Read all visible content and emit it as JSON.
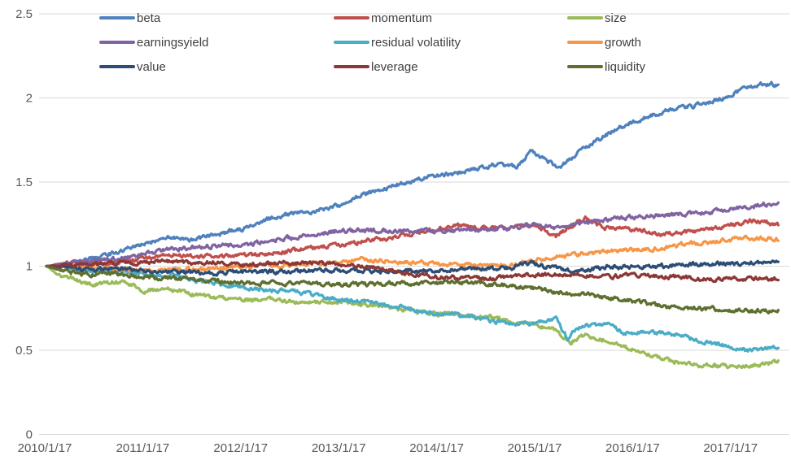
{
  "chart_data": {
    "type": "line",
    "title": "",
    "xlabel": "",
    "ylabel": "",
    "grid": true,
    "legend_position": "top",
    "y_ticks": [
      2.5,
      2,
      1.5,
      1,
      0.5,
      0
    ],
    "y_tick_labels": [
      "2.5",
      "2",
      "1.5",
      "1",
      "0.5",
      "0"
    ],
    "ylim": [
      0,
      2.5
    ],
    "x_tick_labels": [
      "2010/1/17",
      "2011/1/17",
      "2012/1/17",
      "2013/1/17",
      "2014/1/17",
      "2015/1/17",
      "2016/1/17",
      "2017/1/17"
    ],
    "x_unit": "years_since_first_tick",
    "xlim": [
      0,
      7.47
    ],
    "axis_color": "#595959",
    "gridline_color": "#d9d9d9",
    "series": [
      {
        "label": "beta",
        "color": "#4F81BD",
        "points": [
          [
            0,
            1.0
          ],
          [
            0.25,
            1.02
          ],
          [
            0.5,
            1.05
          ],
          [
            0.75,
            1.09
          ],
          [
            1,
            1.13
          ],
          [
            1.25,
            1.17
          ],
          [
            1.5,
            1.16
          ],
          [
            1.75,
            1.19
          ],
          [
            2,
            1.22
          ],
          [
            2.25,
            1.28
          ],
          [
            2.5,
            1.31
          ],
          [
            2.75,
            1.33
          ],
          [
            3,
            1.36
          ],
          [
            3.25,
            1.43
          ],
          [
            3.5,
            1.47
          ],
          [
            3.75,
            1.51
          ],
          [
            4,
            1.54
          ],
          [
            4.25,
            1.56
          ],
          [
            4.55,
            1.6
          ],
          [
            4.8,
            1.59
          ],
          [
            4.96,
            1.69
          ],
          [
            5.1,
            1.63
          ],
          [
            5.23,
            1.58
          ],
          [
            5.4,
            1.66
          ],
          [
            5.6,
            1.74
          ],
          [
            5.8,
            1.81
          ],
          [
            6,
            1.86
          ],
          [
            6.3,
            1.92
          ],
          [
            6.6,
            1.95
          ],
          [
            6.9,
            2.0
          ],
          [
            7.1,
            2.05
          ],
          [
            7.3,
            2.08
          ],
          [
            7.47,
            2.08
          ]
        ]
      },
      {
        "label": "momentum",
        "color": "#C0504D",
        "points": [
          [
            0,
            1.0
          ],
          [
            0.3,
            1.02
          ],
          [
            0.6,
            1.015
          ],
          [
            1,
            1.045
          ],
          [
            1.3,
            1.065
          ],
          [
            1.6,
            1.055
          ],
          [
            1.9,
            1.065
          ],
          [
            2.2,
            1.07
          ],
          [
            2.6,
            1.1
          ],
          [
            3,
            1.125
          ],
          [
            3.4,
            1.16
          ],
          [
            3.7,
            1.19
          ],
          [
            4,
            1.22
          ],
          [
            4.2,
            1.245
          ],
          [
            4.5,
            1.22
          ],
          [
            4.8,
            1.235
          ],
          [
            5,
            1.24
          ],
          [
            5.2,
            1.18
          ],
          [
            5.5,
            1.285
          ],
          [
            5.7,
            1.23
          ],
          [
            6,
            1.22
          ],
          [
            6.3,
            1.19
          ],
          [
            6.6,
            1.21
          ],
          [
            6.9,
            1.23
          ],
          [
            7.2,
            1.27
          ],
          [
            7.47,
            1.25
          ]
        ]
      },
      {
        "label": "size",
        "color": "#9BBB59",
        "points": [
          [
            0,
            1.0
          ],
          [
            0.15,
            0.94
          ],
          [
            0.3,
            0.92
          ],
          [
            0.45,
            0.89
          ],
          [
            0.6,
            0.9
          ],
          [
            0.8,
            0.91
          ],
          [
            1,
            0.85
          ],
          [
            1.2,
            0.87
          ],
          [
            1.5,
            0.83
          ],
          [
            1.8,
            0.81
          ],
          [
            2,
            0.8
          ],
          [
            2.3,
            0.8
          ],
          [
            2.6,
            0.79
          ],
          [
            3,
            0.785
          ],
          [
            3.3,
            0.77
          ],
          [
            3.6,
            0.75
          ],
          [
            3.9,
            0.72
          ],
          [
            4.2,
            0.71
          ],
          [
            4.5,
            0.7
          ],
          [
            4.8,
            0.67
          ],
          [
            5,
            0.65
          ],
          [
            5.2,
            0.62
          ],
          [
            5.35,
            0.55
          ],
          [
            5.5,
            0.59
          ],
          [
            5.7,
            0.56
          ],
          [
            6,
            0.5
          ],
          [
            6.2,
            0.46
          ],
          [
            6.35,
            0.44
          ],
          [
            6.7,
            0.41
          ],
          [
            7,
            0.4
          ],
          [
            7.2,
            0.41
          ],
          [
            7.47,
            0.43
          ]
        ]
      },
      {
        "label": "earningsyield",
        "color": "#8064A2",
        "points": [
          [
            0,
            1.0
          ],
          [
            0.25,
            1.02
          ],
          [
            0.5,
            1.035
          ],
          [
            0.75,
            1.05
          ],
          [
            1,
            1.07
          ],
          [
            1.25,
            1.1
          ],
          [
            1.5,
            1.11
          ],
          [
            1.75,
            1.12
          ],
          [
            2,
            1.12
          ],
          [
            2.25,
            1.15
          ],
          [
            2.5,
            1.17
          ],
          [
            2.75,
            1.19
          ],
          [
            3,
            1.21
          ],
          [
            3.5,
            1.21
          ],
          [
            4,
            1.21
          ],
          [
            4.5,
            1.22
          ],
          [
            4.75,
            1.225
          ],
          [
            5,
            1.255
          ],
          [
            5.2,
            1.23
          ],
          [
            5.5,
            1.26
          ],
          [
            5.75,
            1.28
          ],
          [
            6,
            1.29
          ],
          [
            6.25,
            1.3
          ],
          [
            6.5,
            1.31
          ],
          [
            6.75,
            1.32
          ],
          [
            7,
            1.34
          ],
          [
            7.25,
            1.36
          ],
          [
            7.47,
            1.37
          ]
        ]
      },
      {
        "label": "residual volatility",
        "color": "#4BACC6",
        "points": [
          [
            0,
            1.0
          ],
          [
            0.3,
            0.98
          ],
          [
            0.6,
            0.97
          ],
          [
            0.9,
            0.965
          ],
          [
            1.1,
            0.95
          ],
          [
            1.3,
            0.945
          ],
          [
            1.6,
            0.91
          ],
          [
            1.9,
            0.88
          ],
          [
            2.2,
            0.86
          ],
          [
            2.5,
            0.85
          ],
          [
            2.8,
            0.82
          ],
          [
            3,
            0.8
          ],
          [
            3.3,
            0.785
          ],
          [
            3.6,
            0.76
          ],
          [
            3.9,
            0.725
          ],
          [
            4.2,
            0.71
          ],
          [
            4.5,
            0.68
          ],
          [
            4.8,
            0.655
          ],
          [
            5,
            0.665
          ],
          [
            5.2,
            0.685
          ],
          [
            5.32,
            0.57
          ],
          [
            5.42,
            0.63
          ],
          [
            5.55,
            0.65
          ],
          [
            5.75,
            0.655
          ],
          [
            5.9,
            0.6
          ],
          [
            6.1,
            0.605
          ],
          [
            6.35,
            0.6
          ],
          [
            6.6,
            0.565
          ],
          [
            6.9,
            0.53
          ],
          [
            7.15,
            0.5
          ],
          [
            7.3,
            0.51
          ],
          [
            7.47,
            0.51
          ]
        ]
      },
      {
        "label": "growth",
        "color": "#F79646",
        "points": [
          [
            0,
            1.0
          ],
          [
            0.3,
            0.995
          ],
          [
            0.6,
            0.985
          ],
          [
            0.9,
            0.98
          ],
          [
            1.2,
            0.975
          ],
          [
            1.5,
            0.98
          ],
          [
            1.8,
            0.99
          ],
          [
            2.1,
            1.0
          ],
          [
            2.4,
            1.005
          ],
          [
            2.7,
            1.015
          ],
          [
            3,
            1.025
          ],
          [
            3.2,
            1.04
          ],
          [
            3.5,
            1.03
          ],
          [
            4,
            1.01
          ],
          [
            4.5,
            1.005
          ],
          [
            4.8,
            1.015
          ],
          [
            5,
            1.04
          ],
          [
            5.3,
            1.06
          ],
          [
            5.6,
            1.08
          ],
          [
            5.9,
            1.095
          ],
          [
            6.2,
            1.1
          ],
          [
            6.5,
            1.13
          ],
          [
            6.8,
            1.145
          ],
          [
            7.1,
            1.165
          ],
          [
            7.3,
            1.17
          ],
          [
            7.47,
            1.16
          ]
        ]
      },
      {
        "label": "value",
        "color": "#2C4D75",
        "points": [
          [
            0,
            1.0
          ],
          [
            0.25,
            0.99
          ],
          [
            0.5,
            0.975
          ],
          [
            0.75,
            0.985
          ],
          [
            1,
            0.97
          ],
          [
            1.5,
            0.96
          ],
          [
            2,
            0.965
          ],
          [
            2.5,
            0.97
          ],
          [
            3,
            0.975
          ],
          [
            3.5,
            0.97
          ],
          [
            4,
            0.975
          ],
          [
            4.5,
            0.985
          ],
          [
            4.75,
            0.99
          ],
          [
            4.95,
            1.025
          ],
          [
            5.1,
            0.995
          ],
          [
            5.2,
            1.0
          ],
          [
            5.35,
            0.965
          ],
          [
            5.5,
            0.975
          ],
          [
            5.75,
            1.0
          ],
          [
            6,
            0.995
          ],
          [
            6.3,
            1.0
          ],
          [
            6.6,
            1.01
          ],
          [
            6.9,
            1.015
          ],
          [
            7.2,
            1.02
          ],
          [
            7.47,
            1.02
          ]
        ]
      },
      {
        "label": "leverage",
        "color": "#8C3836",
        "points": [
          [
            0,
            1.0
          ],
          [
            0.25,
            1.01
          ],
          [
            0.5,
            1.005
          ],
          [
            0.75,
            1.02
          ],
          [
            1,
            1.02
          ],
          [
            1.25,
            1.03
          ],
          [
            1.5,
            1.02
          ],
          [
            1.75,
            1.025
          ],
          [
            2,
            1.005
          ],
          [
            2.25,
            1.015
          ],
          [
            2.5,
            1.02
          ],
          [
            2.75,
            1.02
          ],
          [
            3,
            1.01
          ],
          [
            3.25,
            1.0
          ],
          [
            3.5,
            0.975
          ],
          [
            3.75,
            0.955
          ],
          [
            4,
            0.935
          ],
          [
            4.25,
            0.93
          ],
          [
            4.5,
            0.925
          ],
          [
            4.75,
            0.94
          ],
          [
            5,
            0.95
          ],
          [
            5.25,
            0.945
          ],
          [
            5.5,
            0.95
          ],
          [
            5.75,
            0.935
          ],
          [
            6,
            0.95
          ],
          [
            6.25,
            0.94
          ],
          [
            6.5,
            0.935
          ],
          [
            6.75,
            0.92
          ],
          [
            7,
            0.93
          ],
          [
            7.2,
            0.925
          ],
          [
            7.47,
            0.925
          ]
        ]
      },
      {
        "label": "liquidity",
        "color": "#5E6F2F",
        "points": [
          [
            0,
            1.0
          ],
          [
            0.2,
            0.97
          ],
          [
            0.4,
            0.95
          ],
          [
            0.6,
            0.96
          ],
          [
            0.8,
            0.95
          ],
          [
            1,
            0.93
          ],
          [
            1.25,
            0.93
          ],
          [
            1.5,
            0.92
          ],
          [
            1.75,
            0.91
          ],
          [
            2,
            0.9
          ],
          [
            2.5,
            0.9
          ],
          [
            3,
            0.89
          ],
          [
            3.5,
            0.895
          ],
          [
            4,
            0.9
          ],
          [
            4.3,
            0.905
          ],
          [
            4.6,
            0.89
          ],
          [
            5,
            0.87
          ],
          [
            5.2,
            0.845
          ],
          [
            5.5,
            0.83
          ],
          [
            5.9,
            0.8
          ],
          [
            6.35,
            0.755
          ],
          [
            6.8,
            0.745
          ],
          [
            7.1,
            0.735
          ],
          [
            7.47,
            0.735
          ]
        ]
      }
    ]
  }
}
